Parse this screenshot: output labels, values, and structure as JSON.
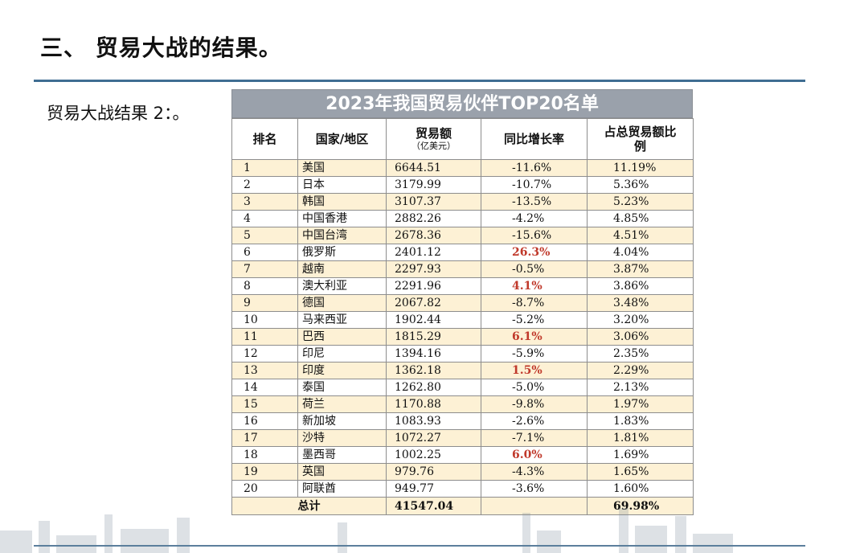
{
  "slide": {
    "title": "三、 贸易大战的结果。",
    "subtitle": "贸易大战结果 2：。"
  },
  "table": {
    "caption": "2023年我国贸易伙伴TOP20名单",
    "headers": {
      "rank": "排名",
      "country": "国家/地区",
      "amount": "贸易额",
      "amount_unit": "（亿美元）",
      "growth": "同比增长率",
      "share": "占总贸易额比例"
    },
    "rows": [
      {
        "rank": "1",
        "country": "美国",
        "amount": "6644.51",
        "growth": "-11.6%",
        "share": "11.19%"
      },
      {
        "rank": "2",
        "country": "日本",
        "amount": "3179.99",
        "growth": "-10.7%",
        "share": "5.36%"
      },
      {
        "rank": "3",
        "country": "韩国",
        "amount": "3107.37",
        "growth": "-13.5%",
        "share": "5.23%"
      },
      {
        "rank": "4",
        "country": "中国香港",
        "amount": "2882.26",
        "growth": "-4.2%",
        "share": "4.85%"
      },
      {
        "rank": "5",
        "country": "中国台湾",
        "amount": "2678.36",
        "growth": "-15.6%",
        "share": "4.51%"
      },
      {
        "rank": "6",
        "country": "俄罗斯",
        "amount": "2401.12",
        "growth": "26.3%",
        "share": "4.04%"
      },
      {
        "rank": "7",
        "country": "越南",
        "amount": "2297.93",
        "growth": "-0.5%",
        "share": "3.87%"
      },
      {
        "rank": "8",
        "country": "澳大利亚",
        "amount": "2291.96",
        "growth": "4.1%",
        "share": "3.86%"
      },
      {
        "rank": "9",
        "country": "德国",
        "amount": "2067.82",
        "growth": "-8.7%",
        "share": "3.48%"
      },
      {
        "rank": "10",
        "country": "马来西亚",
        "amount": "1902.44",
        "growth": "-5.2%",
        "share": "3.20%"
      },
      {
        "rank": "11",
        "country": "巴西",
        "amount": "1815.29",
        "growth": "6.1%",
        "share": "3.06%"
      },
      {
        "rank": "12",
        "country": "印尼",
        "amount": "1394.16",
        "growth": "-5.9%",
        "share": "2.35%"
      },
      {
        "rank": "13",
        "country": "印度",
        "amount": "1362.18",
        "growth": "1.5%",
        "share": "2.29%"
      },
      {
        "rank": "14",
        "country": "泰国",
        "amount": "1262.80",
        "growth": "-5.0%",
        "share": "2.13%"
      },
      {
        "rank": "15",
        "country": "荷兰",
        "amount": "1170.88",
        "growth": "-9.8%",
        "share": "1.97%"
      },
      {
        "rank": "16",
        "country": "新加坡",
        "amount": "1083.93",
        "growth": "-2.6%",
        "share": "1.83%"
      },
      {
        "rank": "17",
        "country": "沙特",
        "amount": "1072.27",
        "growth": "-7.1%",
        "share": "1.81%"
      },
      {
        "rank": "18",
        "country": "墨西哥",
        "amount": "1002.25",
        "growth": "6.0%",
        "share": "1.69%"
      },
      {
        "rank": "19",
        "country": "英国",
        "amount": "979.76",
        "growth": "-4.3%",
        "share": "1.65%"
      },
      {
        "rank": "20",
        "country": "阿联酋",
        "amount": "949.77",
        "growth": "-3.6%",
        "share": "1.60%"
      }
    ],
    "total": {
      "label": "总计",
      "amount": "41547.04",
      "share": "69.98%"
    }
  },
  "colors": {
    "accent_rule": "#3f6d92",
    "caption_bg": "#9aa1ab",
    "row_highlight": "#fdf1d5",
    "positive_growth": "#c0392b"
  }
}
